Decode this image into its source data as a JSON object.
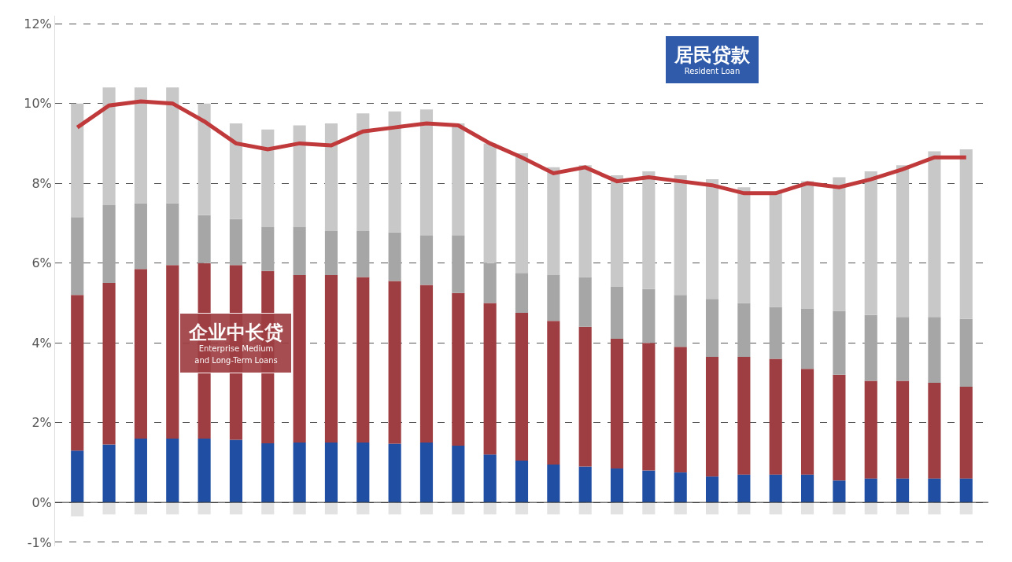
{
  "chart_data": {
    "type": "bar",
    "stacked": true,
    "grid": "y",
    "line_style": "solid",
    "marker": "none",
    "categories": [
      null,
      null,
      null,
      null,
      null,
      null,
      null,
      null,
      null,
      null,
      null,
      null,
      null,
      null,
      null,
      null,
      null,
      null,
      null,
      null,
      null,
      null,
      null,
      null,
      null,
      null,
      null,
      null,
      null
    ],
    "ylim": [
      -1.1,
      12.2
    ],
    "yticks": [
      {
        "value": -1,
        "label": "-1%"
      },
      {
        "value": 0,
        "label": "0%"
      },
      {
        "value": 2,
        "label": "2%"
      },
      {
        "value": 4,
        "label": "4%"
      },
      {
        "value": 6,
        "label": "6%"
      },
      {
        "value": 8,
        "label": "8%"
      },
      {
        "value": 10,
        "label": "10%"
      },
      {
        "value": 12,
        "label": "12%"
      }
    ],
    "series": [
      {
        "name": "居民贷款\nResident Loan",
        "color": "#1f4ea3",
        "values": [
          1.3,
          1.45,
          1.6,
          1.6,
          1.6,
          1.57,
          1.48,
          1.5,
          1.5,
          1.5,
          1.47,
          1.5,
          1.42,
          1.2,
          1.05,
          0.95,
          0.9,
          0.85,
          0.8,
          0.75,
          0.65,
          0.7,
          0.7,
          0.7,
          0.55,
          0.6,
          0.6,
          0.6,
          0.6
        ]
      },
      {
        "name": "企业中长贷\nEnterprise Medium\nand Long-Term Loans",
        "color": "#9e3e42",
        "values": [
          3.9,
          4.05,
          4.25,
          4.35,
          4.4,
          4.38,
          4.32,
          4.2,
          4.2,
          4.15,
          4.08,
          3.95,
          3.83,
          3.8,
          3.7,
          3.6,
          3.5,
          3.25,
          3.2,
          3.15,
          3.0,
          2.95,
          2.9,
          2.65,
          2.65,
          2.45,
          2.45,
          2.4,
          2.3
        ]
      },
      {
        "color": "#a6a6a6",
        "values": [
          1.95,
          1.95,
          1.65,
          1.55,
          1.2,
          1.15,
          1.1,
          1.2,
          1.1,
          1.15,
          1.22,
          1.25,
          1.45,
          1.0,
          1.0,
          1.15,
          1.25,
          1.3,
          1.35,
          1.3,
          1.45,
          1.35,
          1.3,
          1.5,
          1.6,
          1.65,
          1.6,
          1.65,
          1.7
        ]
      },
      {
        "color": "#c8c8c8",
        "values": [
          2.85,
          2.95,
          2.9,
          2.9,
          2.8,
          2.4,
          2.45,
          2.55,
          2.7,
          2.95,
          3.03,
          3.15,
          2.8,
          3.0,
          3.0,
          2.7,
          2.8,
          2.8,
          2.95,
          3.0,
          3.0,
          2.9,
          2.85,
          3.2,
          3.35,
          3.6,
          3.8,
          4.15,
          4.25
        ]
      },
      {
        "color": "#e2e2e2",
        "values": [
          -0.35,
          -0.3,
          -0.3,
          -0.3,
          -0.3,
          -0.3,
          -0.3,
          -0.3,
          -0.3,
          -0.3,
          -0.3,
          -0.3,
          -0.3,
          -0.3,
          -0.3,
          -0.3,
          -0.3,
          -0.3,
          -0.3,
          -0.3,
          -0.3,
          -0.3,
          -0.3,
          -0.3,
          -0.3,
          -0.3,
          -0.3,
          -0.3,
          -0.3
        ]
      },
      {
        "type": "line",
        "color": "#c0393b",
        "values": [
          9.4,
          9.95,
          10.05,
          10.0,
          9.55,
          9.0,
          8.85,
          9.0,
          8.95,
          9.3,
          9.4,
          9.5,
          9.45,
          9.0,
          8.65,
          8.25,
          8.4,
          8.05,
          8.15,
          8.05,
          7.95,
          7.75,
          7.75,
          8.0,
          7.9,
          8.1,
          8.35,
          8.65,
          8.65
        ]
      }
    ]
  }
}
